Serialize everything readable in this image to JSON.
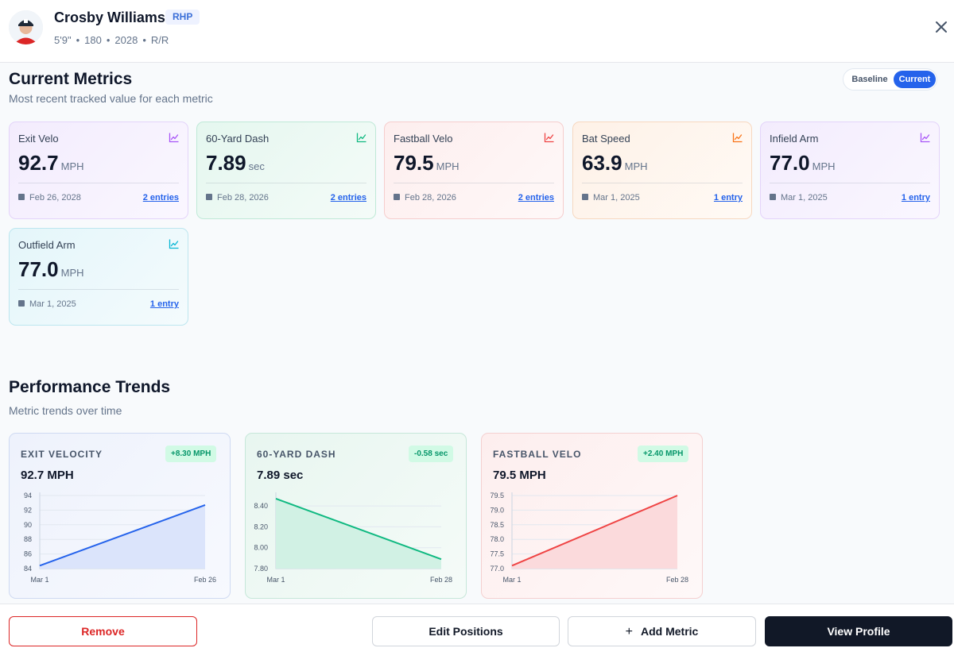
{
  "player": {
    "name": "Crosby Williams",
    "position": "RHP",
    "height": "5'9\"",
    "weight": "180",
    "class_year": "2028",
    "bats_throws": "R/R",
    "separator": "•"
  },
  "current_metrics": {
    "title": "Current Metrics",
    "subtitle": "Most recent tracked value for each metric",
    "toggle": {
      "baseline": "Baseline",
      "current": "Current"
    },
    "cards": [
      {
        "label": "Exit Velo",
        "value": "92.7",
        "unit": "MPH",
        "date": "Feb 26, 2028",
        "entries": "2 entries",
        "icon": "trend-chart-icon"
      },
      {
        "label": "60-Yard Dash",
        "value": "7.89",
        "unit": "sec",
        "date": "Feb 28, 2026",
        "entries": "2 entries",
        "icon": "trend-chart-icon"
      },
      {
        "label": "Fastball Velo",
        "value": "79.5",
        "unit": "MPH",
        "date": "Feb 28, 2026",
        "entries": "2 entries",
        "icon": "trend-chart-icon"
      },
      {
        "label": "Bat Speed",
        "value": "63.9",
        "unit": "MPH",
        "date": "Mar 1, 2025",
        "entries": "1 entry",
        "icon": "trend-chart-icon"
      },
      {
        "label": "Infield Arm",
        "value": "77.0",
        "unit": "MPH",
        "date": "Mar 1, 2025",
        "entries": "1 entry",
        "icon": "trend-chart-icon"
      },
      {
        "label": "Outfield Arm",
        "value": "77.0",
        "unit": "MPH",
        "date": "Mar 1, 2025",
        "entries": "1 entry",
        "icon": "trend-chart-icon"
      }
    ],
    "colors": {
      "purple": "#a855f7",
      "green": "#10b981",
      "red": "#ef4444",
      "orange": "#f97316",
      "cyan": "#06b6d4"
    }
  },
  "trends": {
    "title": "Performance Trends",
    "subtitle": "Metric trends over time",
    "cards": [
      {
        "title": "EXIT VELOCITY",
        "delta": "+8.30 MPH",
        "value": "92.7 MPH"
      },
      {
        "title": "60-YARD DASH",
        "delta": "-0.58 sec",
        "value": "7.89 sec"
      },
      {
        "title": "FASTBALL VELO",
        "delta": "+2.40 MPH",
        "value": "79.5 MPH"
      }
    ]
  },
  "chart_data": [
    {
      "type": "area",
      "title": "EXIT VELOCITY",
      "x": [
        "Mar 1",
        "Feb 26"
      ],
      "values": [
        84.4,
        92.7
      ],
      "yticks": [
        "84",
        "86",
        "88",
        "90",
        "92",
        "94"
      ],
      "ylim": [
        84,
        94
      ],
      "color": "#2563eb",
      "fill": "#dbe4fb"
    },
    {
      "type": "area",
      "title": "60-YARD DASH",
      "x": [
        "Mar 1",
        "Feb 28"
      ],
      "values": [
        8.47,
        7.89
      ],
      "yticks": [
        "7.80",
        "8.00",
        "8.20",
        "8.40"
      ],
      "ylim": [
        7.8,
        8.5
      ],
      "color": "#10b981",
      "fill": "#d1f1e4"
    },
    {
      "type": "area",
      "title": "FASTBALL VELO",
      "x": [
        "Mar 1",
        "Feb 28"
      ],
      "values": [
        77.1,
        79.5
      ],
      "yticks": [
        "77.0",
        "77.5",
        "78.0",
        "78.5",
        "79.0",
        "79.5"
      ],
      "ylim": [
        77.0,
        79.5
      ],
      "color": "#ef4444",
      "fill": "#fbdadc"
    }
  ],
  "footer": {
    "remove": "Remove",
    "edit_positions": "Edit Positions",
    "add_metric": "Add Metric",
    "add_symbol": "+",
    "view_profile": "View Profile"
  }
}
